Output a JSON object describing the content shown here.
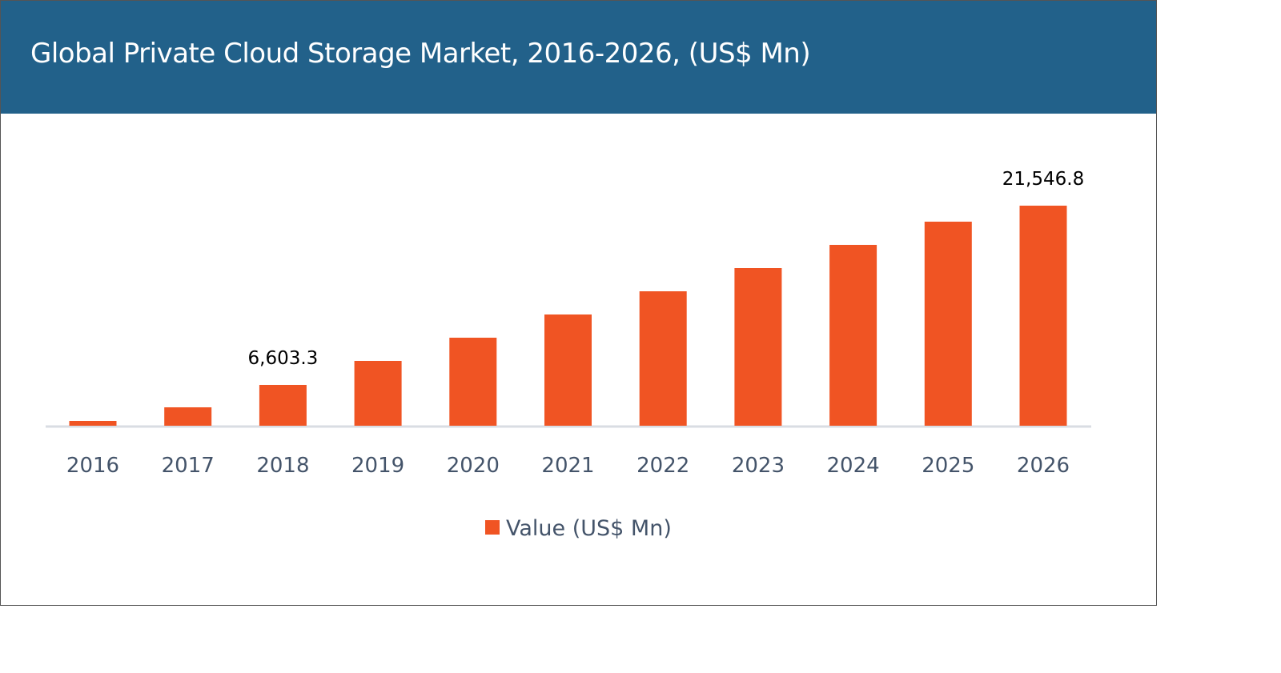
{
  "chart_data": {
    "type": "bar",
    "title": "Global Private Cloud Storage Market, 2016-2026, (US$ Mn)",
    "categories": [
      "2016",
      "2017",
      "2018",
      "2019",
      "2020",
      "2021",
      "2022",
      "2023",
      "2024",
      "2025",
      "2026"
    ],
    "series": [
      {
        "name": "Value (US$ Mn)",
        "color": "#f05423",
        "values": [
          3601,
          4735,
          6603.3,
          8605,
          10539,
          12474,
          14408,
          16343,
          18278,
          20212,
          21546.8
        ]
      }
    ],
    "data_labels": [
      {
        "category": "2018",
        "text": "6,603.3"
      },
      {
        "category": "2026",
        "text": "21,546.8"
      }
    ],
    "xlabel": "",
    "ylabel": "",
    "ylim": [
      3200,
      24000
    ],
    "grid": false,
    "legend": "bottom",
    "header_color": "#22618a"
  }
}
